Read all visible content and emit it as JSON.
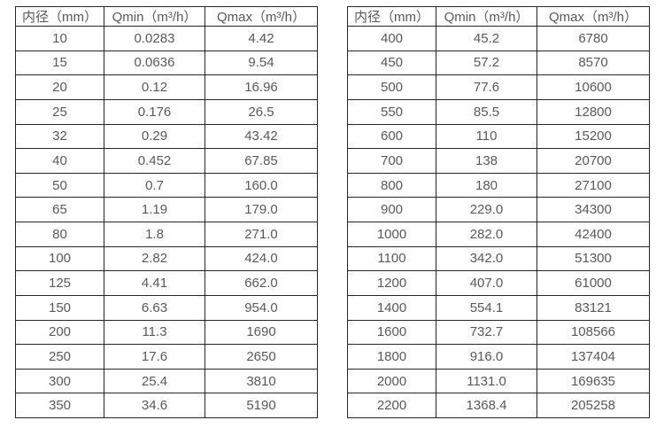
{
  "colors": {
    "border": "#262626",
    "text": "#595959",
    "background": "#ffffff"
  },
  "chart_data": [
    {
      "type": "table",
      "title": "",
      "columns": [
        "内径（mm）",
        "Qmin（m³/h）",
        "Qmax（m³/h）"
      ],
      "rows": [
        [
          "10",
          "0.0283",
          "4.42"
        ],
        [
          "15",
          "0.0636",
          "9.54"
        ],
        [
          "20",
          "0.12",
          "16.96"
        ],
        [
          "25",
          "0.176",
          "26.5"
        ],
        [
          "32",
          "0.29",
          "43.42"
        ],
        [
          "40",
          "0.452",
          "67.85"
        ],
        [
          "50",
          "0.7",
          "160.0"
        ],
        [
          "65",
          "1.19",
          "179.0"
        ],
        [
          "80",
          "1.8",
          "271.0"
        ],
        [
          "100",
          "2.82",
          "424.0"
        ],
        [
          "125",
          "4.41",
          "662.0"
        ],
        [
          "150",
          "6.63",
          "954.0"
        ],
        [
          "200",
          "11.3",
          "1690"
        ],
        [
          "250",
          "17.6",
          "2650"
        ],
        [
          "300",
          "25.4",
          "3810"
        ],
        [
          "350",
          "34.6",
          "5190"
        ]
      ]
    },
    {
      "type": "table",
      "title": "",
      "columns": [
        "内径（mm）",
        "Qmin（m³/h）",
        "Qmax（m³/h）"
      ],
      "rows": [
        [
          "400",
          "45.2",
          "6780"
        ],
        [
          "450",
          "57.2",
          "8570"
        ],
        [
          "500",
          "77.6",
          "10600"
        ],
        [
          "550",
          "85.5",
          "12800"
        ],
        [
          "600",
          "110",
          "15200"
        ],
        [
          "700",
          "138",
          "20700"
        ],
        [
          "800",
          "180",
          "27100"
        ],
        [
          "900",
          "229.0",
          "34300"
        ],
        [
          "1000",
          "282.0",
          "42400"
        ],
        [
          "1100",
          "342.0",
          "51300"
        ],
        [
          "1200",
          "407.0",
          "61000"
        ],
        [
          "1400",
          "554.1",
          "83121"
        ],
        [
          "1600",
          "732.7",
          "108566"
        ],
        [
          "1800",
          "916.0",
          "137404"
        ],
        [
          "2000",
          "1131.0",
          "169635"
        ],
        [
          "2200",
          "1368.4",
          "205258"
        ]
      ]
    }
  ]
}
